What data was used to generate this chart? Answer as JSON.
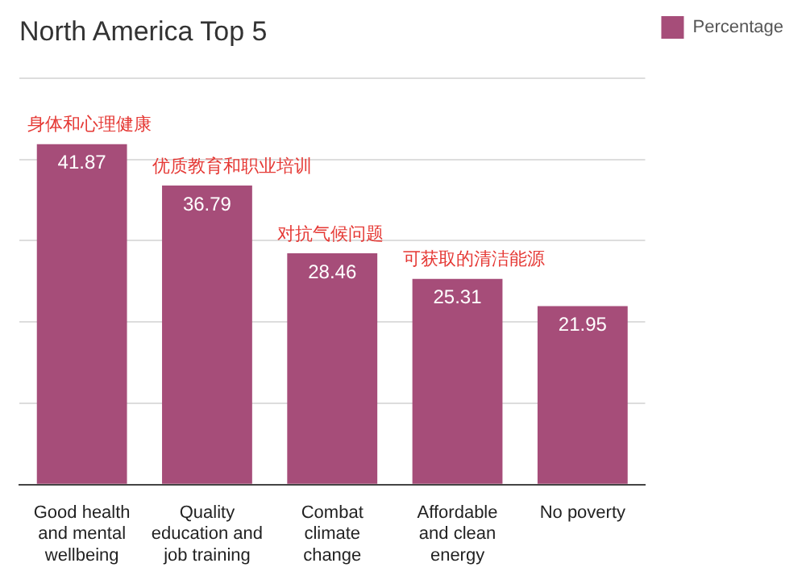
{
  "chart_data": {
    "type": "bar",
    "title": "North America Top 5",
    "categories": [
      "Good health and mental wellbeing",
      "Quality education and job training",
      "Combat climate change",
      "Affordable and clean energy",
      "No poverty"
    ],
    "series": [
      {
        "name": "Percentage",
        "color": "#a64d79",
        "values": [
          41.87,
          36.79,
          28.46,
          25.31,
          21.95
        ]
      }
    ],
    "ylim": [
      0,
      50
    ],
    "yticks": [
      {
        "value": 0,
        "label": null
      },
      {
        "value": 10,
        "label": null
      },
      {
        "value": 20,
        "label": null
      },
      {
        "value": 30,
        "label": null
      },
      {
        "value": 40,
        "label": null
      },
      {
        "value": 50,
        "label": null
      }
    ],
    "tick_labels": "x",
    "grid": "y",
    "legend": "top right",
    "data_labels": true,
    "annotations": [
      {
        "text": "身体和心理健康",
        "x": "Good health and mental wellbeing",
        "y": 41.87
      },
      {
        "text": "优质教育和职业培训",
        "x": "Quality education and job training",
        "y": 36.79
      },
      {
        "text": "对抗气候问题",
        "x": "Combat climate change",
        "y": 28.46
      },
      {
        "text": "可获取的清洁能源",
        "x": "Affordable and clean energy",
        "y": 25.31
      }
    ]
  }
}
